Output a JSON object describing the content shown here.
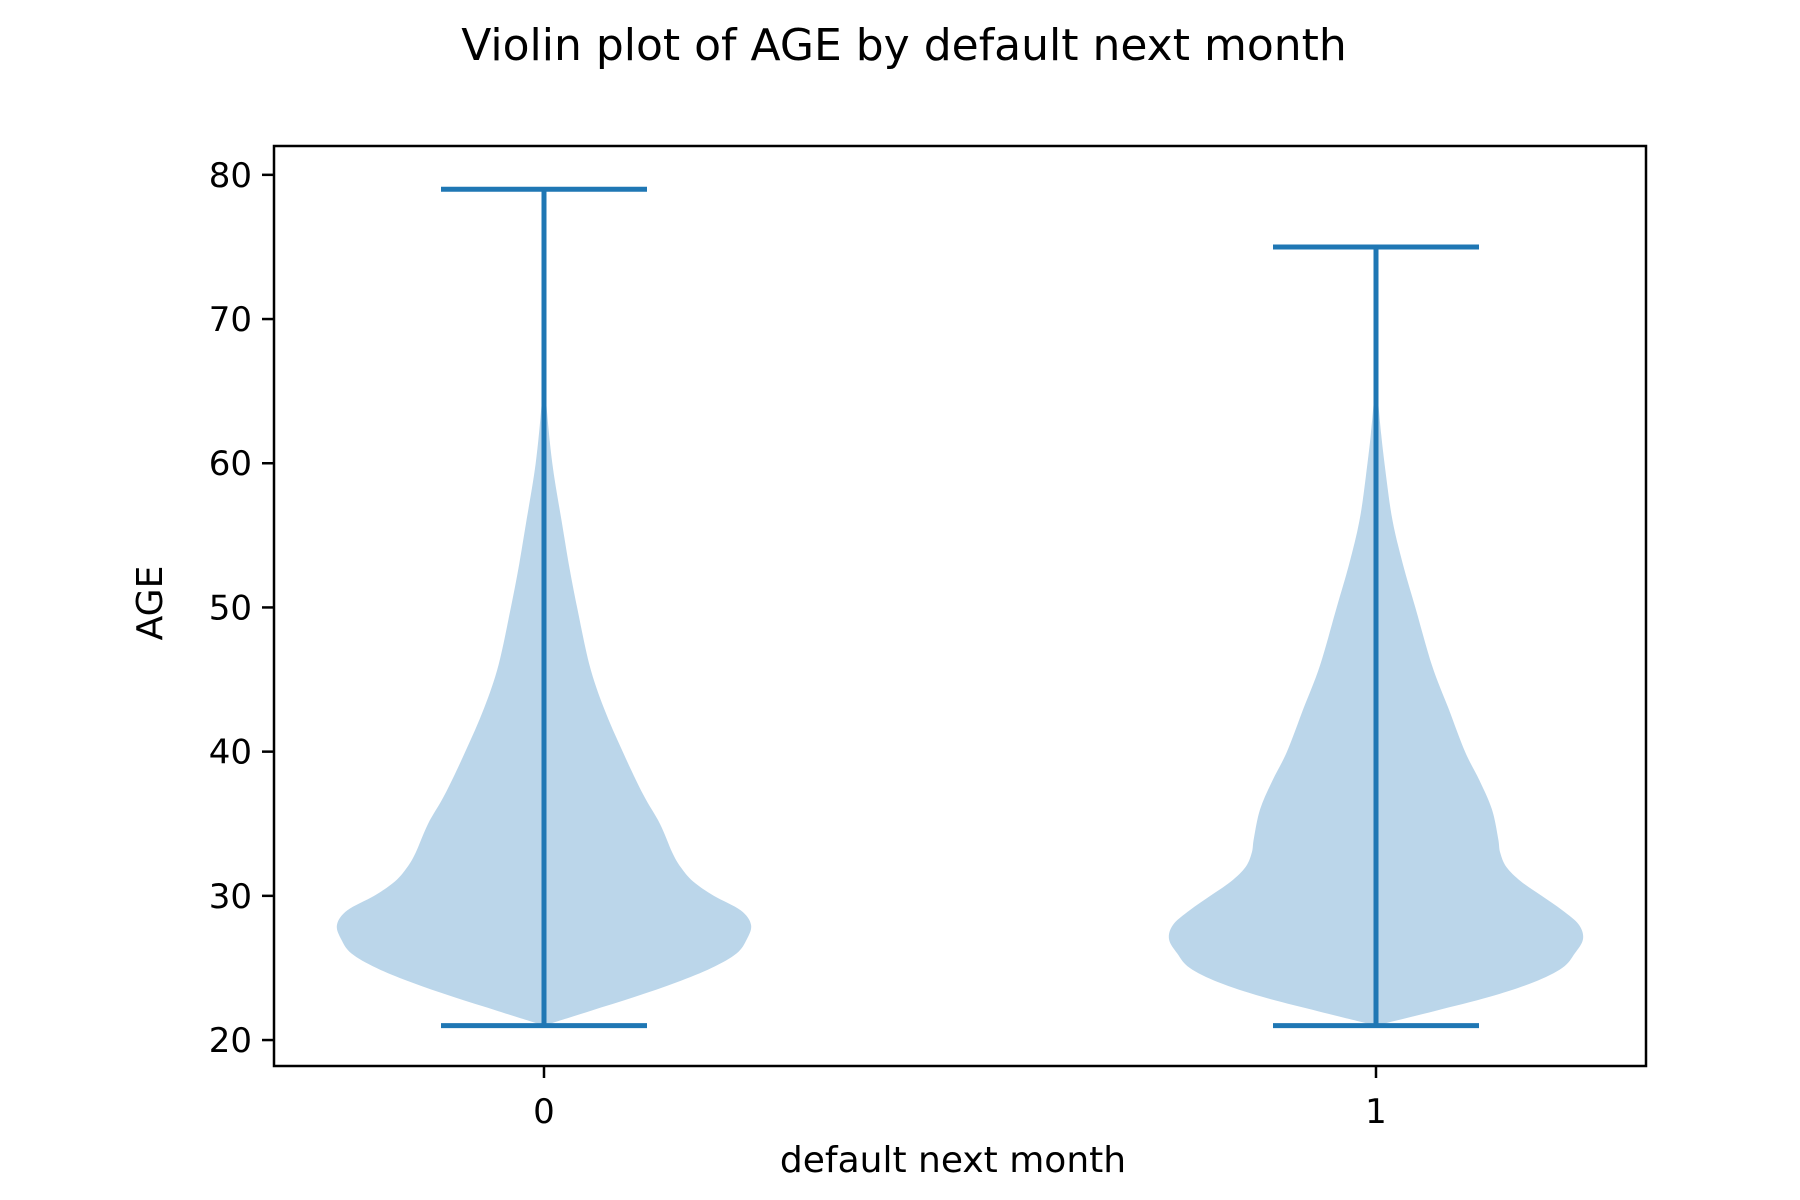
{
  "chart_data": {
    "type": "violin",
    "title": "Violin plot of AGE by default next month",
    "xlabel": "default next month",
    "ylabel": "AGE",
    "categories": [
      "0",
      "1"
    ],
    "ylim": [
      18.2,
      82
    ],
    "yticks": [
      20,
      30,
      40,
      50,
      60,
      70,
      80
    ],
    "grid": false,
    "colors": {
      "body": "#bbd6ea",
      "lines": "#1f77b4"
    },
    "violins": [
      {
        "category": "0",
        "min": 21,
        "max": 79,
        "density": [
          [
            21,
            0.0
          ],
          [
            22,
            0.22
          ],
          [
            23,
            0.44
          ],
          [
            24,
            0.64
          ],
          [
            25,
            0.81
          ],
          [
            26,
            0.93
          ],
          [
            27,
            0.98
          ],
          [
            28,
            1.0
          ],
          [
            29,
            0.95
          ],
          [
            30,
            0.82
          ],
          [
            31,
            0.72
          ],
          [
            32,
            0.66
          ],
          [
            33,
            0.62
          ],
          [
            35,
            0.56
          ],
          [
            37,
            0.48
          ],
          [
            40,
            0.38
          ],
          [
            43,
            0.29
          ],
          [
            46,
            0.22
          ],
          [
            50,
            0.16
          ],
          [
            53,
            0.12
          ],
          [
            56,
            0.085
          ],
          [
            60,
            0.04
          ],
          [
            64,
            0.012
          ],
          [
            67,
            0.0
          ]
        ]
      },
      {
        "category": "1",
        "min": 21,
        "max": 75,
        "density": [
          [
            21,
            0.0
          ],
          [
            22,
            0.28
          ],
          [
            23,
            0.55
          ],
          [
            24,
            0.76
          ],
          [
            25,
            0.9
          ],
          [
            26,
            0.96
          ],
          [
            27,
            1.0
          ],
          [
            28,
            0.98
          ],
          [
            29,
            0.9
          ],
          [
            30,
            0.8
          ],
          [
            31,
            0.7
          ],
          [
            32,
            0.63
          ],
          [
            33,
            0.6
          ],
          [
            34,
            0.59
          ],
          [
            36,
            0.56
          ],
          [
            38,
            0.5
          ],
          [
            40,
            0.43
          ],
          [
            43,
            0.35
          ],
          [
            46,
            0.27
          ],
          [
            50,
            0.19
          ],
          [
            53,
            0.13
          ],
          [
            56,
            0.08
          ],
          [
            59,
            0.05
          ],
          [
            62,
            0.025
          ],
          [
            66,
            0.0
          ]
        ]
      }
    ]
  }
}
